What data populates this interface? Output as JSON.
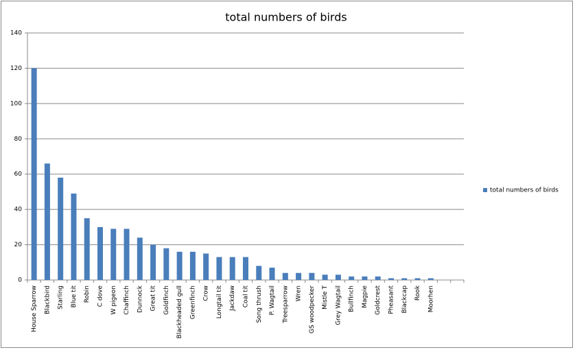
{
  "chart_data": {
    "type": "bar",
    "title": "total numbers of birds",
    "categories": [
      "House Sparrow",
      "Blackbird",
      "Starling",
      "Blue tit",
      "Robin",
      "C dove",
      "W pigeon",
      "Chaffinch",
      "Dunnock",
      "Great tit",
      "Goldfinch",
      "Blackheaded gull",
      "Greenfinch",
      "Crow",
      "Longtail tit",
      "Jackdaw",
      "Coal tit",
      "Song thrush",
      "P. Wagtail",
      "Treesparrow",
      "Wren",
      "GS woodpecker",
      "Mistle T",
      "Grey Wagtail",
      "Bullfinch",
      "Magpie",
      "Goldcrest",
      "Pheasant",
      "Blackcap",
      "Rook",
      "Moorhen",
      null,
      null
    ],
    "series": [
      {
        "name": "total numbers of birds",
        "color": "#4a7ebb",
        "values": [
          120,
          66,
          58,
          49,
          35,
          30,
          29,
          29,
          24,
          20,
          18,
          16,
          16,
          15,
          13,
          13,
          13,
          8,
          7,
          4,
          4,
          4,
          3,
          3,
          2,
          2,
          2,
          1,
          1,
          1,
          1,
          null,
          null
        ]
      }
    ],
    "ylim": [
      0,
      140
    ],
    "yticks": [
      0,
      20,
      40,
      60,
      80,
      100,
      120,
      140
    ],
    "grid": true,
    "legend": "right"
  }
}
